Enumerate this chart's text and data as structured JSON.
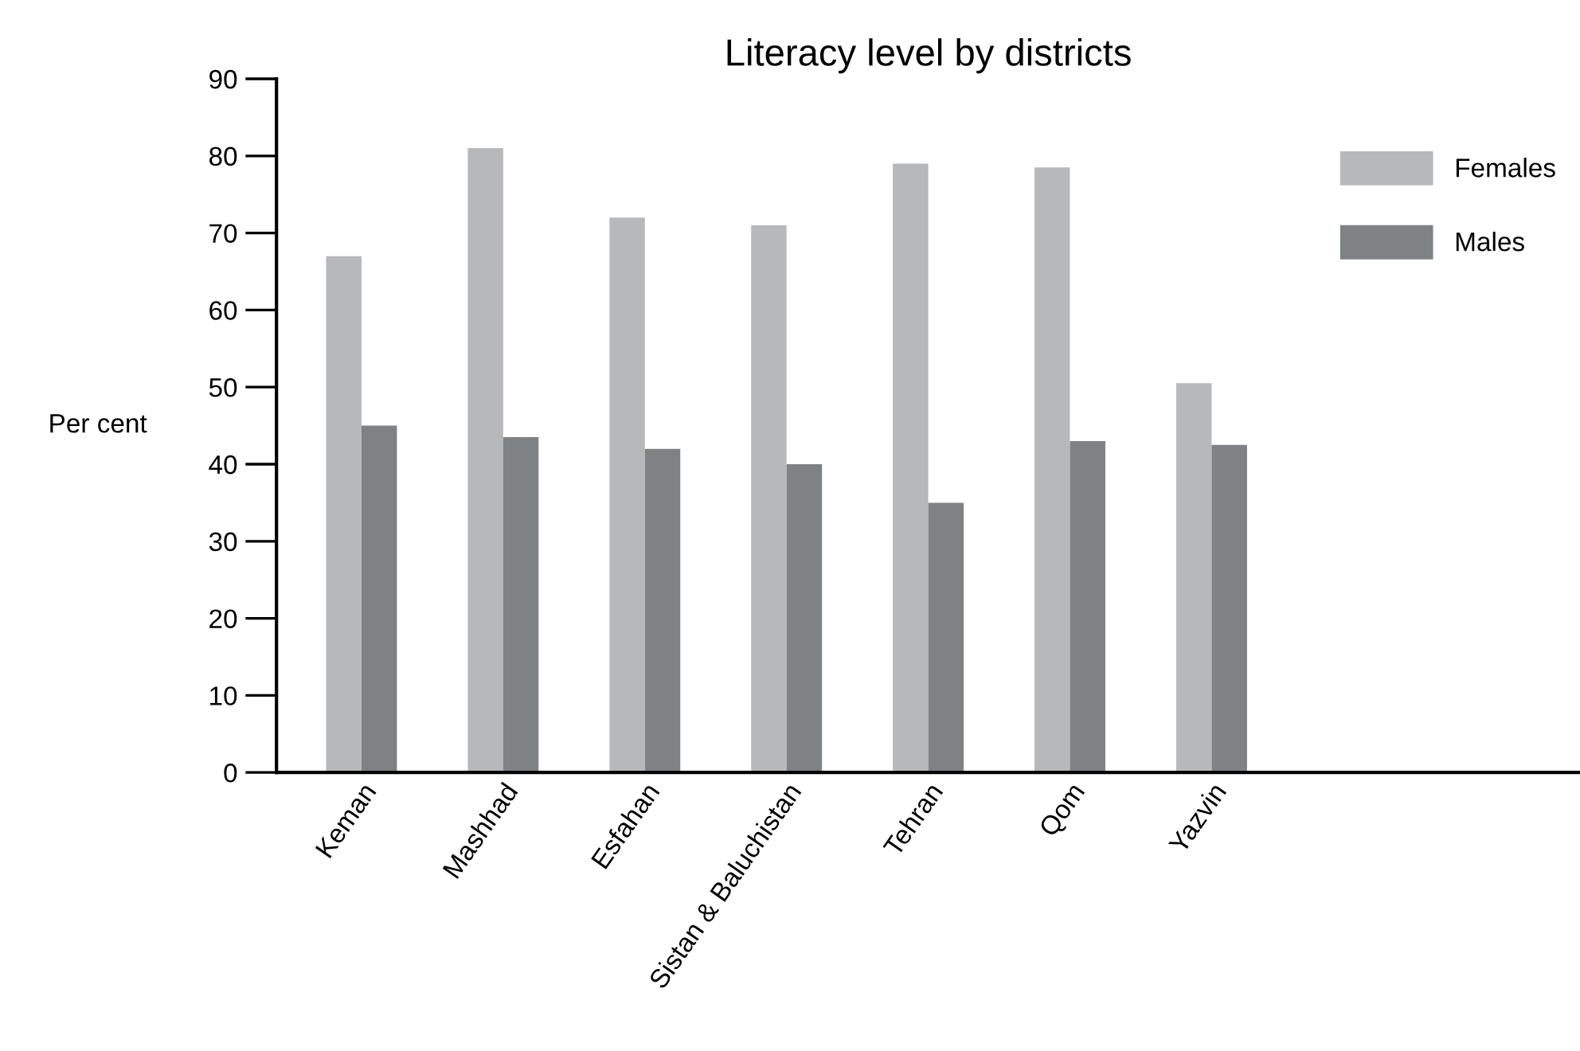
{
  "chart_data": {
    "type": "bar",
    "title": "Literacy level by districts",
    "ylabel": "Per cent",
    "categories": [
      "Keman",
      "Mashhad",
      "Esfahan",
      "Sistan & Baluchistan",
      "Tehran",
      "Qom",
      "Yazvin"
    ],
    "series": [
      {
        "name": "Females",
        "color": "#b7b8ba",
        "values": [
          67,
          81,
          72,
          71,
          79,
          78.5,
          50.5
        ]
      },
      {
        "name": "Males",
        "color": "#7f8284",
        "values": [
          45,
          43.5,
          42,
          40,
          35,
          43,
          42.5
        ]
      }
    ],
    "ylim": [
      0,
      90
    ],
    "yticks": [
      0,
      10,
      20,
      30,
      40,
      50,
      60,
      70,
      80,
      90
    ],
    "grid": false,
    "legend": "top right"
  }
}
